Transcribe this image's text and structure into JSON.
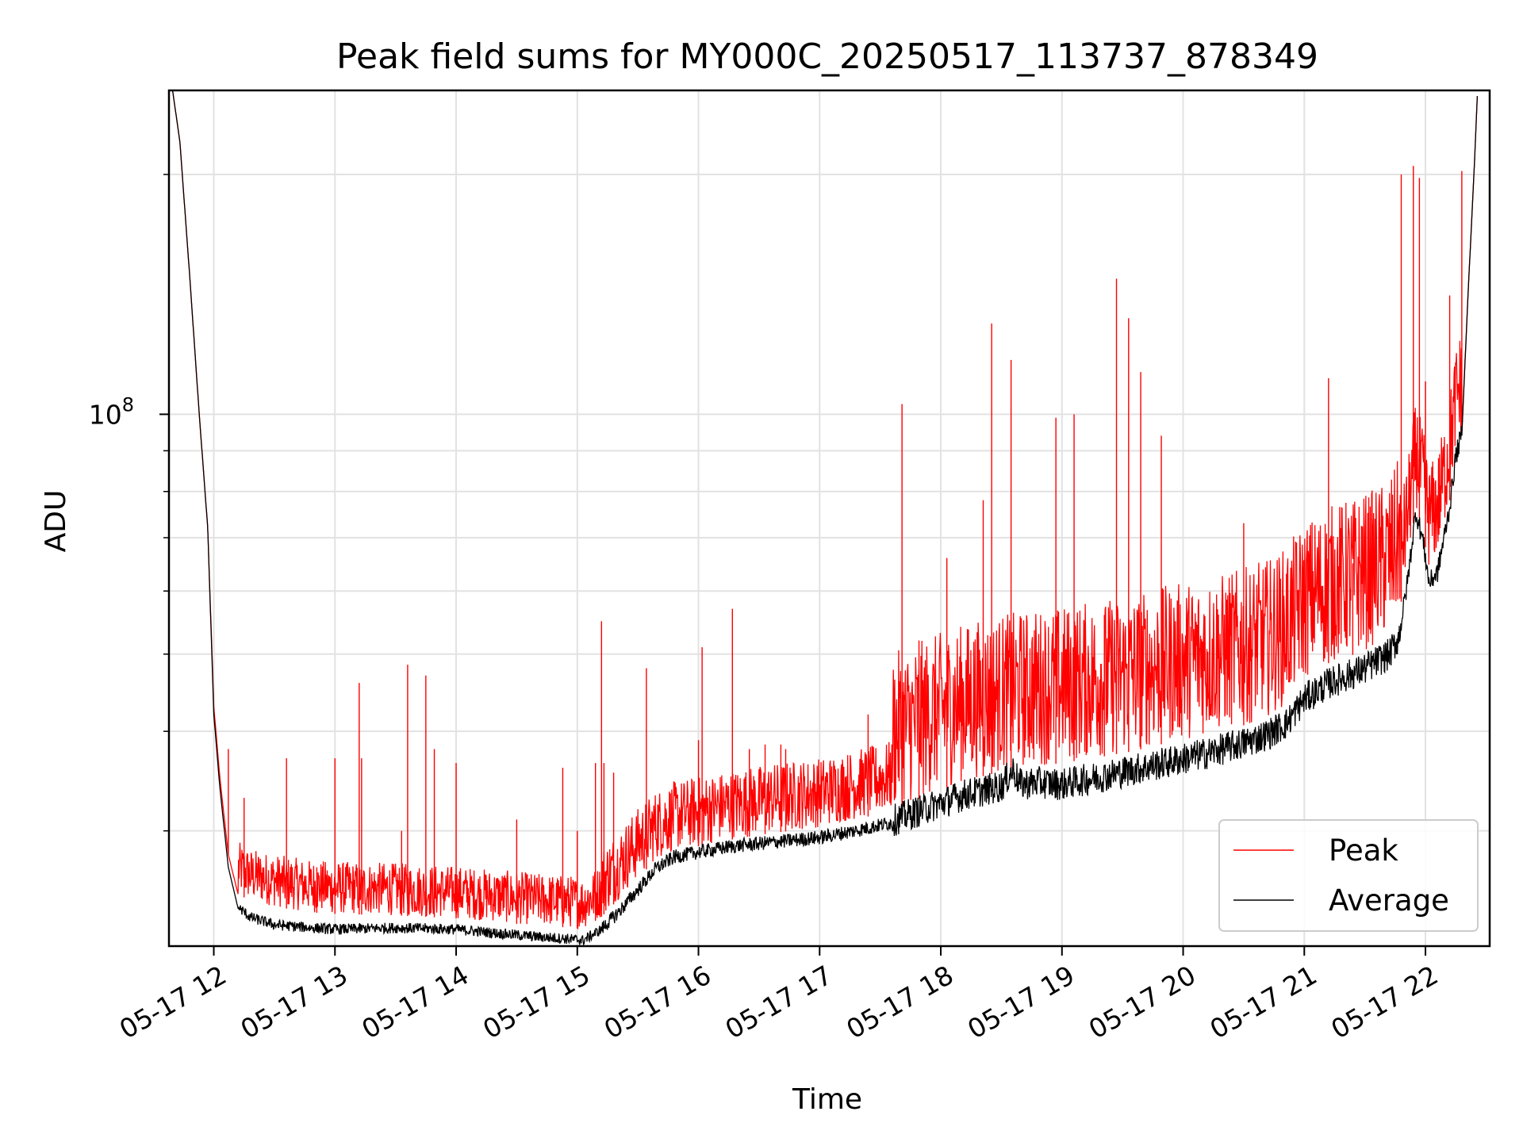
{
  "chart_data": {
    "type": "line",
    "title": "Peak field sums for MY000C_20250517_113737_878349",
    "xlabel": "Time",
    "ylabel": "ADU",
    "x_ticks": [
      "05-17 12",
      "05-17 13",
      "05-17 14",
      "05-17 15",
      "05-17 16",
      "05-17 17",
      "05-17 18",
      "05-17 19",
      "05-17 20",
      "05-17 21",
      "05-17 22"
    ],
    "x_tick_hours": [
      12,
      13,
      14,
      15,
      16,
      17,
      18,
      19,
      20,
      21,
      22
    ],
    "xlim_hours": [
      11.63,
      22.53
    ],
    "y_scale": "log",
    "ylim": [
      21500000,
      255000000
    ],
    "y_ticks": [
      {
        "value": 100000000,
        "base": "10",
        "exp": "8"
      }
    ],
    "y_minor_ticks": [
      30000000,
      40000000,
      50000000,
      60000000,
      70000000,
      80000000,
      90000000,
      200000000
    ],
    "grid": true,
    "legend_placement": "lower-right",
    "series": [
      {
        "name": "Peak",
        "color": "#ff0000",
        "baseline": [
          [
            11.66,
            255000000
          ],
          [
            11.72,
            220000000
          ],
          [
            11.8,
            150000000
          ],
          [
            11.88,
            100000000
          ],
          [
            11.95,
            72000000
          ],
          [
            12.0,
            43000000
          ],
          [
            12.05,
            35000000
          ],
          [
            12.12,
            28000000
          ],
          [
            12.2,
            25000000
          ],
          [
            12.3,
            24500000
          ],
          [
            12.5,
            24100000
          ],
          [
            12.8,
            23700000
          ],
          [
            13.0,
            23600000
          ],
          [
            13.5,
            23500000
          ],
          [
            14.0,
            23300000
          ],
          [
            14.4,
            23000000
          ],
          [
            14.7,
            22800000
          ],
          [
            14.9,
            22700000
          ],
          [
            15.05,
            22600000
          ],
          [
            15.2,
            23400000
          ],
          [
            15.35,
            24700000
          ],
          [
            15.5,
            26200000
          ],
          [
            15.65,
            27600000
          ],
          [
            15.8,
            28300000
          ],
          [
            16.0,
            28700000
          ],
          [
            16.3,
            29300000
          ],
          [
            16.6,
            29800000
          ],
          [
            17.0,
            30300000
          ],
          [
            17.3,
            31000000
          ],
          [
            17.6,
            31800000
          ],
          [
            17.8,
            32800000
          ],
          [
            18.0,
            33800000
          ],
          [
            18.2,
            34700000
          ],
          [
            18.5,
            35600000
          ],
          [
            18.8,
            36200000
          ],
          [
            19.0,
            36500000
          ],
          [
            19.3,
            37100000
          ],
          [
            19.6,
            37800000
          ],
          [
            19.9,
            38800000
          ],
          [
            20.2,
            39600000
          ],
          [
            20.5,
            40700000
          ],
          [
            20.7,
            41800000
          ],
          [
            20.85,
            43200000
          ],
          [
            21.0,
            46500000
          ],
          [
            21.2,
            48700000
          ],
          [
            21.5,
            50500000
          ],
          [
            21.7,
            52500000
          ],
          [
            21.78,
            56000000
          ],
          [
            21.85,
            64000000
          ],
          [
            21.92,
            77000000
          ],
          [
            21.98,
            71000000
          ],
          [
            22.03,
            64000000
          ],
          [
            22.1,
            66000000
          ],
          [
            22.2,
            78000000
          ],
          [
            22.25,
            90000000
          ],
          [
            22.3,
            95000000
          ],
          [
            22.35,
            140000000
          ],
          [
            22.4,
            200000000
          ],
          [
            22.43,
            255000000
          ]
        ],
        "spikes": [
          [
            12.12,
            38000000
          ],
          [
            12.25,
            33000000
          ],
          [
            12.6,
            37000000
          ],
          [
            12.85,
            27000000
          ],
          [
            13.0,
            37000000
          ],
          [
            13.2,
            46000000
          ],
          [
            13.22,
            37000000
          ],
          [
            13.55,
            30000000
          ],
          [
            13.6,
            48500000
          ],
          [
            13.75,
            47000000
          ],
          [
            13.82,
            38000000
          ],
          [
            14.0,
            36500000
          ],
          [
            14.5,
            31000000
          ],
          [
            14.88,
            36000000
          ],
          [
            15.0,
            30000000
          ],
          [
            15.15,
            36500000
          ],
          [
            15.2,
            55000000
          ],
          [
            15.22,
            36500000
          ],
          [
            15.3,
            35500000
          ],
          [
            15.57,
            48000000
          ],
          [
            16.0,
            39000000
          ],
          [
            16.03,
            51000000
          ],
          [
            16.28,
            57000000
          ],
          [
            16.42,
            38000000
          ],
          [
            16.55,
            38500000
          ],
          [
            16.68,
            38500000
          ],
          [
            16.72,
            38000000
          ],
          [
            17.4,
            42000000
          ],
          [
            17.68,
            103000000
          ],
          [
            17.82,
            52000000
          ],
          [
            18.05,
            66000000
          ],
          [
            18.35,
            78000000
          ],
          [
            18.42,
            130000000
          ],
          [
            18.58,
            117000000
          ],
          [
            18.95,
            99000000
          ],
          [
            19.1,
            100000000
          ],
          [
            19.35,
            56000000
          ],
          [
            19.45,
            148000000
          ],
          [
            19.55,
            132000000
          ],
          [
            19.65,
            113000000
          ],
          [
            19.82,
            94000000
          ],
          [
            20.5,
            73000000
          ],
          [
            20.55,
            53000000
          ],
          [
            21.2,
            111000000
          ],
          [
            21.4,
            65000000
          ],
          [
            21.8,
            200000000
          ],
          [
            21.9,
            205000000
          ],
          [
            21.95,
            198000000
          ],
          [
            22.0,
            110000000
          ],
          [
            22.2,
            141000000
          ],
          [
            22.3,
            202000000
          ]
        ]
      },
      {
        "name": "Average",
        "color": "#000000",
        "baseline": [
          [
            11.66,
            255000000
          ],
          [
            11.72,
            220000000
          ],
          [
            11.8,
            150000000
          ],
          [
            11.88,
            100000000
          ],
          [
            11.95,
            72000000
          ],
          [
            12.0,
            42000000
          ],
          [
            12.05,
            34000000
          ],
          [
            12.12,
            27000000
          ],
          [
            12.2,
            24000000
          ],
          [
            12.3,
            23300000
          ],
          [
            12.5,
            22800000
          ],
          [
            12.8,
            22600000
          ],
          [
            13.0,
            22500000
          ],
          [
            13.5,
            22600000
          ],
          [
            14.0,
            22500000
          ],
          [
            14.4,
            22200000
          ],
          [
            14.7,
            22000000
          ],
          [
            14.9,
            21900000
          ],
          [
            15.05,
            21800000
          ],
          [
            15.2,
            22500000
          ],
          [
            15.35,
            23700000
          ],
          [
            15.5,
            25200000
          ],
          [
            15.65,
            26800000
          ],
          [
            15.8,
            27700000
          ],
          [
            16.0,
            28100000
          ],
          [
            16.3,
            28600000
          ],
          [
            16.6,
            28900000
          ],
          [
            17.0,
            29300000
          ],
          [
            17.3,
            29900000
          ],
          [
            17.6,
            30600000
          ],
          [
            17.8,
            31400000
          ],
          [
            18.0,
            32200000
          ],
          [
            18.2,
            33000000
          ],
          [
            18.5,
            33800000
          ],
          [
            18.6,
            35500000
          ],
          [
            18.65,
            34000000
          ],
          [
            18.8,
            34200000
          ],
          [
            19.0,
            34000000
          ],
          [
            19.3,
            34700000
          ],
          [
            19.6,
            35500000
          ],
          [
            19.9,
            36300000
          ],
          [
            20.2,
            37200000
          ],
          [
            20.5,
            38300000
          ],
          [
            20.7,
            39300000
          ],
          [
            20.85,
            40500000
          ],
          [
            21.0,
            43500000
          ],
          [
            21.2,
            45500000
          ],
          [
            21.5,
            47500000
          ],
          [
            21.7,
            49500000
          ],
          [
            21.78,
            52000000
          ],
          [
            21.85,
            61000000
          ],
          [
            21.92,
            75000000
          ],
          [
            21.98,
            69000000
          ],
          [
            22.03,
            61000000
          ],
          [
            22.1,
            63000000
          ],
          [
            22.2,
            76000000
          ],
          [
            22.25,
            88000000
          ],
          [
            22.3,
            94000000
          ],
          [
            22.35,
            140000000
          ],
          [
            22.4,
            200000000
          ],
          [
            22.43,
            255000000
          ]
        ]
      }
    ]
  }
}
